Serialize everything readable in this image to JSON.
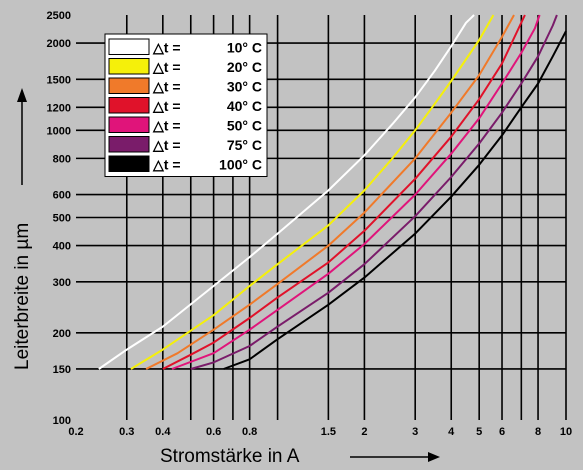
{
  "chart_data": {
    "type": "line",
    "x_scale": "log",
    "y_scale": "log",
    "xlim": [
      0.2,
      10
    ],
    "ylim": [
      100,
      2500
    ],
    "xlabel": "Stromstärke in A",
    "ylabel": "Leiterbreite in µm",
    "x_ticks": [
      {
        "value": 0.2,
        "label": "0.2"
      },
      {
        "value": 0.3,
        "label": "0.3"
      },
      {
        "value": 0.4,
        "label": "0.4"
      },
      {
        "value": 0.6,
        "label": "0.6"
      },
      {
        "value": 0.8,
        "label": "0.8"
      },
      {
        "value": 1.5,
        "label": "1.5"
      },
      {
        "value": 2,
        "label": "2"
      },
      {
        "value": 3,
        "label": "3"
      },
      {
        "value": 4,
        "label": "4"
      },
      {
        "value": 5,
        "label": "5"
      },
      {
        "value": 6,
        "label": "6"
      },
      {
        "value": 8,
        "label": "8"
      },
      {
        "value": 10,
        "label": "10"
      }
    ],
    "x_grid": [
      0.3,
      0.4,
      0.5,
      0.6,
      0.7,
      0.8,
      1,
      1.5,
      2,
      3,
      4,
      5,
      6,
      7,
      8,
      10
    ],
    "y_ticks": [
      {
        "value": 100,
        "label": "100"
      },
      {
        "value": 150,
        "label": "150"
      },
      {
        "value": 200,
        "label": "200"
      },
      {
        "value": 300,
        "label": "300"
      },
      {
        "value": 400,
        "label": "400"
      },
      {
        "value": 500,
        "label": "500"
      },
      {
        "value": 600,
        "label": "600"
      },
      {
        "value": 800,
        "label": "800"
      },
      {
        "value": 1000,
        "label": "1000"
      },
      {
        "value": 1200,
        "label": "1200"
      },
      {
        "value": 1500,
        "label": "1500"
      },
      {
        "value": 2000,
        "label": "2000"
      },
      {
        "value": 2500,
        "label": "2500"
      }
    ],
    "y_grid": [
      150,
      200,
      300,
      400,
      500,
      600,
      800,
      1000,
      1200,
      1500,
      2000
    ],
    "legend_position": "top-left",
    "series": [
      {
        "label": "10° C",
        "color": "#ffffff",
        "points": [
          [
            0.24,
            150
          ],
          [
            0.3,
            175
          ],
          [
            0.4,
            210
          ],
          [
            0.6,
            290
          ],
          [
            0.8,
            365
          ],
          [
            1,
            440
          ],
          [
            1.5,
            620
          ],
          [
            2,
            820
          ],
          [
            2.5,
            1050
          ],
          [
            3,
            1300
          ],
          [
            3.5,
            1600
          ],
          [
            4,
            1950
          ],
          [
            4.5,
            2350
          ],
          [
            4.8,
            2500
          ]
        ]
      },
      {
        "label": "20° C",
        "color": "#f5f00a",
        "points": [
          [
            0.31,
            150
          ],
          [
            0.4,
            175
          ],
          [
            0.6,
            230
          ],
          [
            0.8,
            290
          ],
          [
            1,
            345
          ],
          [
            1.5,
            470
          ],
          [
            2,
            620
          ],
          [
            2.5,
            800
          ],
          [
            3,
            1000
          ],
          [
            3.5,
            1230
          ],
          [
            4,
            1480
          ],
          [
            5,
            2050
          ],
          [
            5.6,
            2500
          ]
        ]
      },
      {
        "label": "30° C",
        "color": "#f07a2a",
        "points": [
          [
            0.35,
            150
          ],
          [
            0.45,
            170
          ],
          [
            0.6,
            205
          ],
          [
            0.8,
            250
          ],
          [
            1,
            295
          ],
          [
            1.5,
            400
          ],
          [
            2,
            520
          ],
          [
            3,
            800
          ],
          [
            4,
            1150
          ],
          [
            5,
            1550
          ],
          [
            6,
            2100
          ],
          [
            6.6,
            2500
          ]
        ]
      },
      {
        "label": "40° C",
        "color": "#e0122a",
        "points": [
          [
            0.4,
            150
          ],
          [
            0.5,
            168
          ],
          [
            0.6,
            185
          ],
          [
            0.8,
            225
          ],
          [
            1,
            265
          ],
          [
            1.5,
            350
          ],
          [
            2,
            450
          ],
          [
            3,
            680
          ],
          [
            4,
            950
          ],
          [
            5,
            1280
          ],
          [
            6,
            1700
          ],
          [
            7.2,
            2500
          ]
        ]
      },
      {
        "label": "50° C",
        "color": "#e0147a",
        "points": [
          [
            0.43,
            150
          ],
          [
            0.6,
            170
          ],
          [
            0.8,
            205
          ],
          [
            1,
            240
          ],
          [
            1.5,
            320
          ],
          [
            2,
            405
          ],
          [
            3,
            600
          ],
          [
            4,
            830
          ],
          [
            5,
            1100
          ],
          [
            6,
            1450
          ],
          [
            7,
            1850
          ],
          [
            7.8,
            2250
          ],
          [
            8.1,
            2500
          ]
        ]
      },
      {
        "label": "75° C",
        "color": "#7a1c6a",
        "points": [
          [
            0.5,
            150
          ],
          [
            0.6,
            158
          ],
          [
            0.8,
            180
          ],
          [
            1,
            210
          ],
          [
            1.5,
            275
          ],
          [
            2,
            345
          ],
          [
            3,
            505
          ],
          [
            4,
            690
          ],
          [
            5,
            900
          ],
          [
            6,
            1150
          ],
          [
            7,
            1450
          ],
          [
            8,
            1800
          ],
          [
            9,
            2300
          ],
          [
            9.3,
            2500
          ]
        ]
      },
      {
        "label": "100° C",
        "color": "#000000",
        "points": [
          [
            0.65,
            150
          ],
          [
            0.8,
            162
          ],
          [
            1,
            190
          ],
          [
            1.5,
            250
          ],
          [
            2,
            310
          ],
          [
            3,
            440
          ],
          [
            4,
            590
          ],
          [
            5,
            760
          ],
          [
            6,
            960
          ],
          [
            7,
            1200
          ],
          [
            8,
            1450
          ],
          [
            9,
            1800
          ],
          [
            10,
            2200
          ]
        ]
      }
    ],
    "legend_prefix": "△t ="
  }
}
